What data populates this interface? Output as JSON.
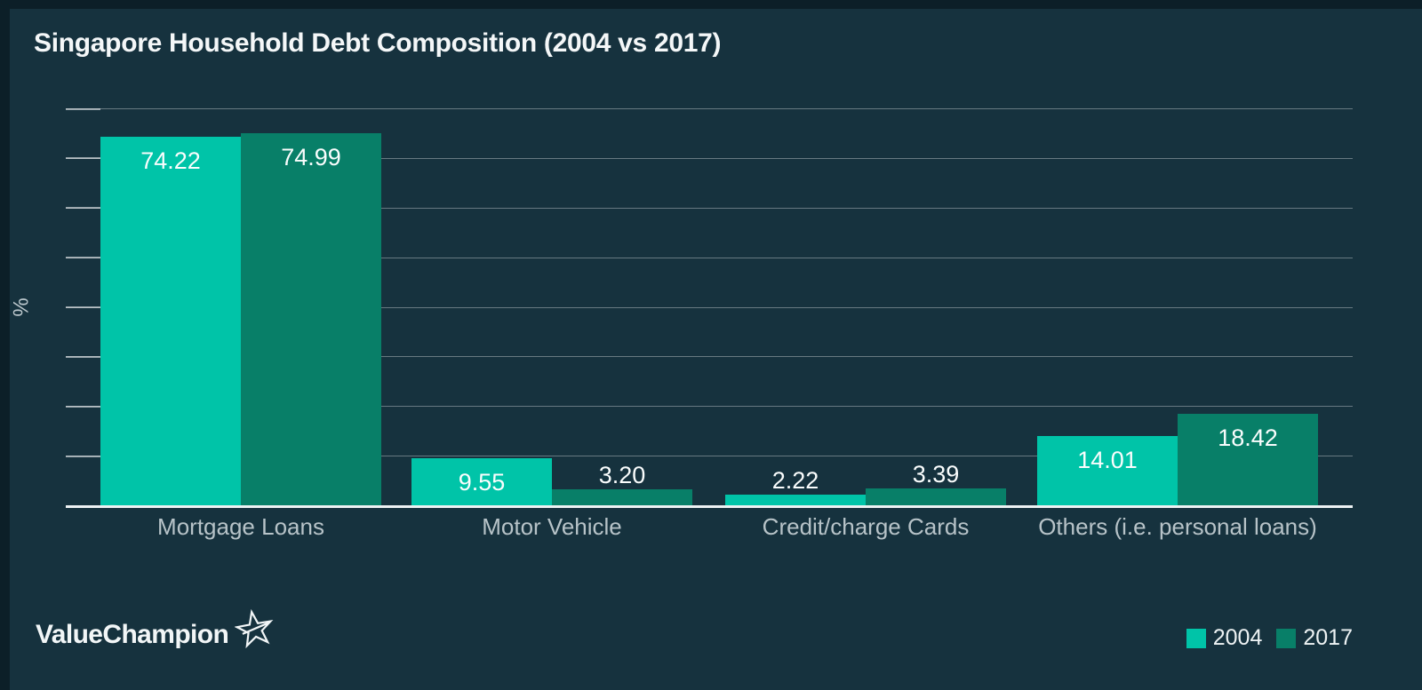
{
  "title": "Singapore Household Debt Composition (2004 vs 2017)",
  "ylabel": "%",
  "logo": {
    "text": "ValueChampion"
  },
  "legend": {
    "items": [
      {
        "label": "2004",
        "color": "#00c4a8"
      },
      {
        "label": "2017",
        "color": "#087f68"
      }
    ]
  },
  "colors": {
    "background": "#16323e",
    "border_strip": "#0c1f28",
    "series_2004": "#00c4a8",
    "series_2017": "#087f68",
    "gridline": "rgba(255,255,255,0.35)",
    "axis_line": "#edf2f3",
    "title_text": "#f4f7f8",
    "category_text": "#b7c3c8",
    "value_text": "#fafdfd"
  },
  "chart_data": {
    "type": "bar",
    "title": "Singapore Household Debt Composition (2004 vs 2017)",
    "xlabel": "",
    "ylabel": "%",
    "ylim": [
      0,
      80
    ],
    "gridlines": "horizontal",
    "gridline_interval": 10,
    "y_tick_labels_shown": false,
    "legend_position": "bottom-right",
    "categories": [
      "Mortgage Loans",
      "Motor Vehicle",
      "Credit/charge Cards",
      "Others (i.e. personal loans)"
    ],
    "series": [
      {
        "name": "2004",
        "color": "#00c4a8",
        "values": [
          74.22,
          9.55,
          2.22,
          14.01
        ],
        "labels": [
          "74.22",
          "9.55",
          "2.22",
          "14.01"
        ]
      },
      {
        "name": "2017",
        "color": "#087f68",
        "values": [
          74.99,
          3.2,
          3.39,
          18.42
        ],
        "labels": [
          "74.99",
          "3.20",
          "3.39",
          "18.42"
        ]
      }
    ]
  }
}
